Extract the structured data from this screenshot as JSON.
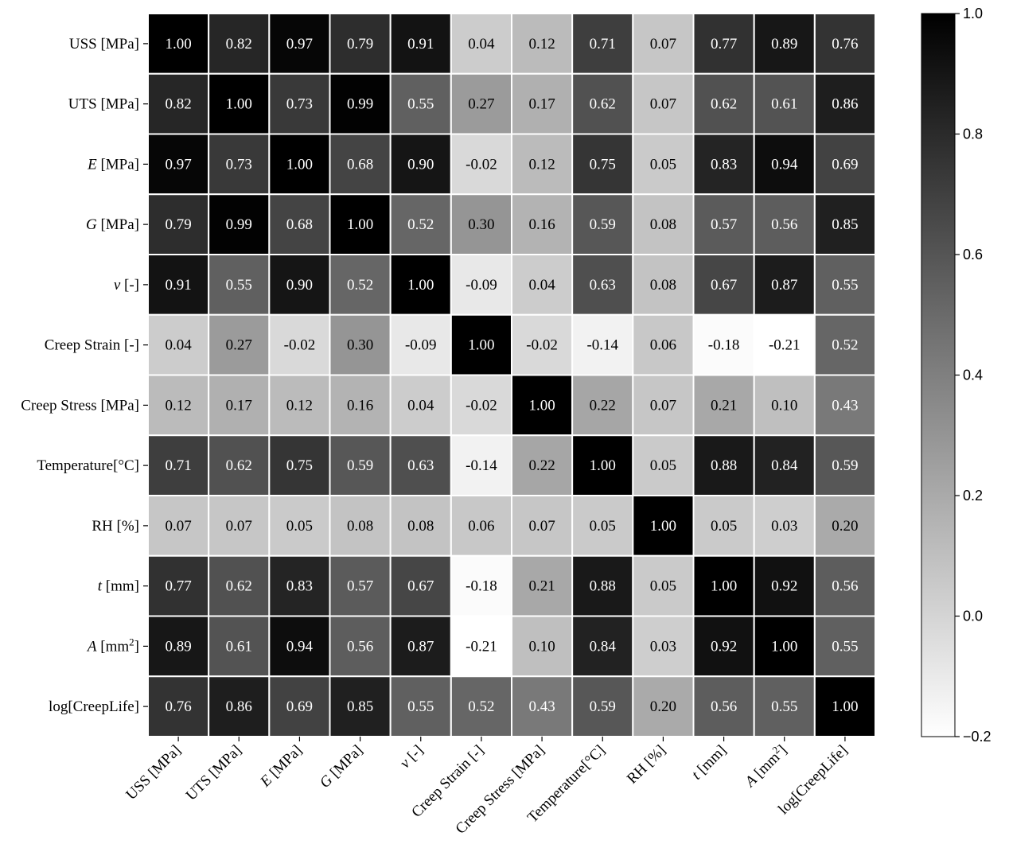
{
  "chart_data": {
    "type": "heatmap",
    "title": "",
    "xlabel": "",
    "ylabel": "",
    "variables": [
      "USS [MPa]",
      "UTS [MPa]",
      "E [MPa]",
      "G [MPa]",
      "ν [-]",
      "Creep Strain [-]",
      "Creep Stress [MPa]",
      "Temperature[°C]",
      "RH [%]",
      "t [mm]",
      "A [mm²]",
      "log[CreepLife]"
    ],
    "matrix": [
      [
        1.0,
        0.82,
        0.97,
        0.79,
        0.91,
        0.04,
        0.12,
        0.71,
        0.07,
        0.77,
        0.89,
        0.76
      ],
      [
        0.82,
        1.0,
        0.73,
        0.99,
        0.55,
        0.27,
        0.17,
        0.62,
        0.07,
        0.62,
        0.61,
        0.86
      ],
      [
        0.97,
        0.73,
        1.0,
        0.68,
        0.9,
        -0.02,
        0.12,
        0.75,
        0.05,
        0.83,
        0.94,
        0.69
      ],
      [
        0.79,
        0.99,
        0.68,
        1.0,
        0.52,
        0.3,
        0.16,
        0.59,
        0.08,
        0.57,
        0.56,
        0.85
      ],
      [
        0.91,
        0.55,
        0.9,
        0.52,
        1.0,
        -0.09,
        0.04,
        0.63,
        0.08,
        0.67,
        0.87,
        0.55
      ],
      [
        0.04,
        0.27,
        -0.02,
        0.3,
        -0.09,
        1.0,
        -0.02,
        -0.14,
        0.06,
        -0.18,
        -0.21,
        0.52
      ],
      [
        0.12,
        0.17,
        0.12,
        0.16,
        0.04,
        -0.02,
        1.0,
        0.22,
        0.07,
        0.21,
        0.1,
        0.43
      ],
      [
        0.71,
        0.62,
        0.75,
        0.59,
        0.63,
        -0.14,
        0.22,
        1.0,
        0.05,
        0.88,
        0.84,
        0.59
      ],
      [
        0.07,
        0.07,
        0.05,
        0.08,
        0.08,
        0.06,
        0.07,
        0.05,
        1.0,
        0.05,
        0.03,
        0.2
      ],
      [
        0.77,
        0.62,
        0.83,
        0.57,
        0.67,
        -0.18,
        0.21,
        0.88,
        0.05,
        1.0,
        0.92,
        0.56
      ],
      [
        0.89,
        0.61,
        0.94,
        0.56,
        0.87,
        -0.21,
        0.1,
        0.84,
        0.03,
        0.92,
        1.0,
        0.55
      ],
      [
        0.76,
        0.86,
        0.69,
        0.85,
        0.55,
        0.52,
        0.43,
        0.59,
        0.2,
        0.56,
        0.55,
        1.0
      ]
    ],
    "colorbar": {
      "range": [
        -0.2,
        1.0
      ],
      "ticks": [
        1.0,
        0.8,
        0.6,
        0.4,
        0.2,
        0.0,
        -0.2
      ],
      "tick_labels": [
        "1.0",
        "0.8",
        "0.6",
        "0.4",
        "0.2",
        "0.0",
        "−0.2"
      ],
      "colormap": "greys"
    },
    "colors": {
      "low": "#ffffff",
      "high": "#000000",
      "cell_border": "#ffffff",
      "text_on_dark": "#ffffff",
      "text_on_light": "#000000"
    }
  }
}
